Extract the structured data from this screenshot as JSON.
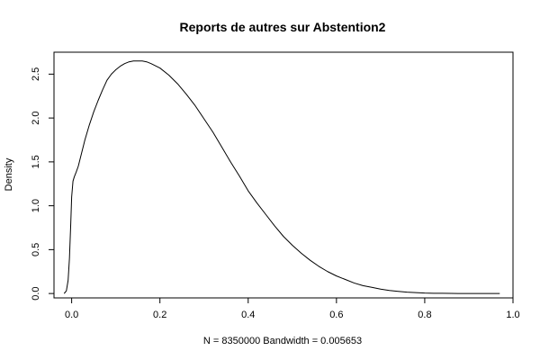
{
  "chart_data": {
    "type": "line",
    "title": "Reports de autres sur Abstention2",
    "xlabel": "N = 8350000   Bandwidth = 0.005653",
    "ylabel": "Density",
    "xlim": [
      -0.04,
      1.0
    ],
    "ylim": [
      -0.05,
      2.75
    ],
    "x_ticks": [
      0.0,
      0.2,
      0.4,
      0.6,
      0.8,
      1.0
    ],
    "x_tick_labels": [
      "0.0",
      "0.2",
      "0.4",
      "0.6",
      "0.8",
      "1.0"
    ],
    "y_ticks": [
      0.0,
      0.5,
      1.0,
      1.5,
      2.0,
      2.5
    ],
    "y_tick_labels": [
      "0.0",
      "0.5",
      "1.0",
      "1.5",
      "2.0",
      "2.5"
    ],
    "grid": false,
    "series": [
      {
        "x": [
          -0.017,
          -0.012,
          -0.008,
          -0.005,
          -0.002,
          0.0,
          0.003,
          0.006,
          0.01,
          0.015,
          0.02,
          0.03,
          0.04,
          0.05,
          0.06,
          0.07,
          0.08,
          0.09,
          0.1,
          0.11,
          0.12,
          0.13,
          0.14,
          0.15,
          0.16,
          0.17,
          0.18,
          0.2,
          0.22,
          0.24,
          0.26,
          0.28,
          0.3,
          0.32,
          0.34,
          0.36,
          0.38,
          0.4,
          0.42,
          0.44,
          0.46,
          0.48,
          0.5,
          0.52,
          0.54,
          0.56,
          0.58,
          0.6,
          0.62,
          0.64,
          0.66,
          0.68,
          0.7,
          0.72,
          0.74,
          0.76,
          0.78,
          0.8,
          0.82,
          0.84,
          0.86,
          0.88,
          0.9,
          0.92,
          0.94,
          0.97
        ],
        "y": [
          0.0,
          0.03,
          0.15,
          0.4,
          0.8,
          1.1,
          1.28,
          1.33,
          1.38,
          1.45,
          1.55,
          1.75,
          1.92,
          2.07,
          2.2,
          2.32,
          2.43,
          2.5,
          2.55,
          2.59,
          2.62,
          2.64,
          2.65,
          2.65,
          2.65,
          2.64,
          2.62,
          2.57,
          2.49,
          2.39,
          2.27,
          2.14,
          1.99,
          1.84,
          1.67,
          1.5,
          1.34,
          1.17,
          1.03,
          0.9,
          0.77,
          0.65,
          0.55,
          0.46,
          0.38,
          0.31,
          0.25,
          0.2,
          0.16,
          0.12,
          0.09,
          0.07,
          0.05,
          0.035,
          0.025,
          0.015,
          0.01,
          0.005,
          0.003,
          0.002,
          0.001,
          0.0,
          0.0,
          0.0,
          0.0,
          0.0
        ]
      }
    ]
  }
}
